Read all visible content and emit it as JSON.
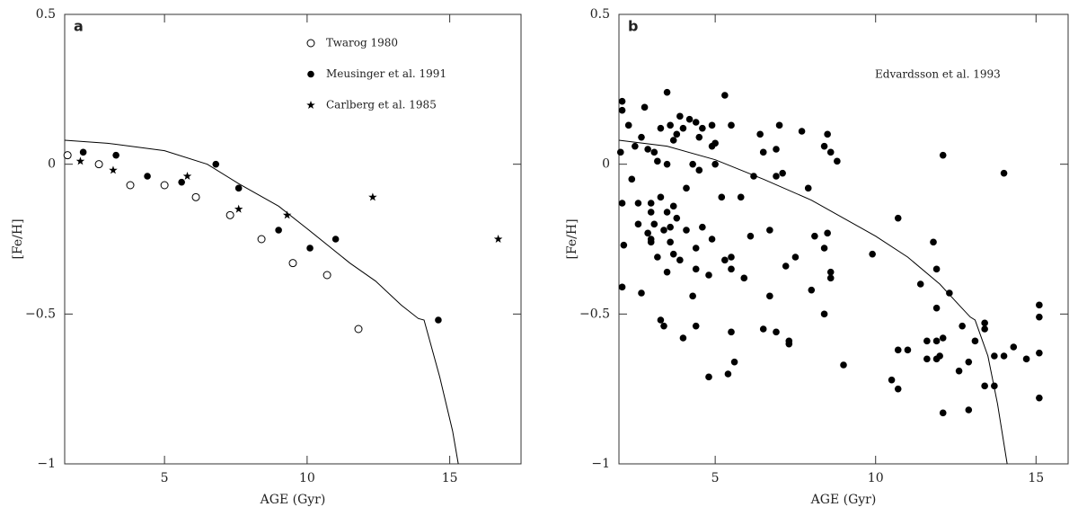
{
  "chart_data": [
    {
      "type": "scatter",
      "panel_label": "a",
      "xlabel": "AGE (Gyr)",
      "ylabel": "[Fe/H]",
      "xlim": [
        1.5,
        17.5
      ],
      "ylim": [
        -1,
        0.5
      ],
      "xticks": [
        5,
        10,
        15
      ],
      "yticks": [
        0.5,
        0,
        {
          "value": -0.5,
          "label": "−0.5"
        },
        {
          "value": -1,
          "label": "−1"
        }
      ],
      "legend": "top-right",
      "series": [
        {
          "name": "Twarog 1980",
          "marker": "open-circle",
          "color": "#000000",
          "x": [
            1.6,
            2.7,
            3.8,
            5,
            6.1,
            7.3,
            8.4,
            9.5,
            10.7,
            11.8
          ],
          "values": [
            0.03,
            0,
            -0.07,
            -0.07,
            -0.11,
            -0.17,
            -0.25,
            -0.33,
            -0.37,
            -0.55
          ]
        },
        {
          "name": "Meusinger et al. 1991",
          "marker": "filled-circle",
          "color": "#000000",
          "x": [
            2.15,
            3.3,
            4.4,
            5.6,
            6.8,
            7.6,
            9.0,
            10.1,
            11.0,
            14.6
          ],
          "values": [
            0.04,
            0.03,
            -0.04,
            -0.06,
            0,
            -0.08,
            -0.22,
            -0.28,
            -0.25,
            -0.52
          ]
        },
        {
          "name": "Carlberg et al. 1985",
          "marker": "star",
          "color": "#000000",
          "x": [
            2.05,
            3.2,
            5.8,
            7.6,
            9.3,
            12.3,
            16.7
          ],
          "values": [
            0.01,
            -0.02,
            -0.04,
            -0.15,
            -0.17,
            -0.11,
            -0.25
          ]
        },
        {
          "marker": "line",
          "color": "#000000",
          "x": [
            1.5,
            3,
            5,
            6.5,
            7.6,
            9,
            10,
            11.5,
            12.4,
            13.3,
            13.9,
            14.1,
            14.65,
            15.1,
            15.3
          ],
          "values": [
            0.08,
            0.07,
            0.045,
            0,
            -0.065,
            -0.14,
            -0.215,
            -0.33,
            -0.39,
            -0.47,
            -0.515,
            -0.52,
            -0.71,
            -0.89,
            -1
          ]
        }
      ]
    },
    {
      "type": "scatter",
      "panel_label": "b",
      "xlabel": "AGE (Gyr)",
      "ylabel": "[Fe/H]",
      "xlim": [
        2,
        16
      ],
      "ylim": [
        -1,
        0.5
      ],
      "xticks": [
        5,
        10,
        15
      ],
      "yticks": [
        0.5,
        0,
        {
          "value": -0.5,
          "label": "−0.5"
        },
        {
          "value": -1,
          "label": "−1"
        }
      ],
      "annotation": "Edvardsson et al. 1993",
      "series": [
        {
          "marker": "filled-circle",
          "color": "#000000",
          "x": [
            2.05,
            2.1,
            2.1,
            2.1,
            2.15,
            2.1,
            2.3,
            2.4,
            2.5,
            2.6,
            2.6,
            2.7,
            2.7,
            2.8,
            2.9,
            2.9,
            3.0,
            3.0,
            3.0,
            3.0,
            3.1,
            3.1,
            3.2,
            3.2,
            3.3,
            3.3,
            3.3,
            3.4,
            3.4,
            3.5,
            3.5,
            3.5,
            3.5,
            3.6,
            3.6,
            3.6,
            3.7,
            3.7,
            3.7,
            3.8,
            3.8,
            3.9,
            3.9,
            4.0,
            4.0,
            4.1,
            4.1,
            4.2,
            4.3,
            4.3,
            4.4,
            4.4,
            4.4,
            4.4,
            4.5,
            4.5,
            4.6,
            4.6,
            4.8,
            4.8,
            4.9,
            4.9,
            4.9,
            5.0,
            5.0,
            5.2,
            5.3,
            5.3,
            5.4,
            5.5,
            5.5,
            5.5,
            5.5,
            5.6,
            5.8,
            5.9,
            6.1,
            6.2,
            6.4,
            6.5,
            6.5,
            6.7,
            6.7,
            6.9,
            6.9,
            6.9,
            7.0,
            7.1,
            7.2,
            7.3,
            7.3,
            7.5,
            7.7,
            7.9,
            8.0,
            8.1,
            8.4,
            8.4,
            8.4,
            8.5,
            8.5,
            8.6,
            8.6,
            8.6,
            8.8,
            9.0,
            9.9,
            10.5,
            10.7,
            10.7,
            10.7,
            11.0,
            11.4,
            11.6,
            11.6,
            11.8,
            11.9,
            11.9,
            11.9,
            11.9,
            12.0,
            12.1,
            12.1,
            12.1,
            12.3,
            12.6,
            12.7,
            12.9,
            12.9,
            13.1,
            13.4,
            13.4,
            13.4,
            13.7,
            13.7,
            14.0,
            14.0,
            14.3,
            14.7,
            15.1,
            15.1,
            15.1,
            15.1
          ],
          "values": [
            0.04,
            0.21,
            0.18,
            -0.13,
            -0.27,
            -0.41,
            0.13,
            -0.05,
            0.06,
            -0.2,
            -0.13,
            -0.43,
            0.09,
            0.19,
            0.05,
            -0.23,
            -0.13,
            -0.16,
            -0.26,
            -0.25,
            -0.2,
            0.04,
            0.01,
            -0.31,
            -0.52,
            0.12,
            -0.11,
            -0.54,
            -0.22,
            0.24,
            0,
            -0.16,
            -0.36,
            0.13,
            -0.26,
            -0.21,
            0.08,
            -0.14,
            -0.3,
            0.1,
            -0.18,
            0.16,
            -0.32,
            -0.58,
            0.12,
            -0.08,
            -0.22,
            0.15,
            0,
            -0.44,
            -0.28,
            -0.35,
            0.14,
            -0.54,
            0.09,
            -0.02,
            -0.21,
            0.12,
            -0.37,
            -0.71,
            0.06,
            -0.25,
            0.13,
            0.07,
            0,
            -0.11,
            0.23,
            -0.32,
            -0.7,
            -0.35,
            -0.31,
            -0.56,
            0.13,
            -0.66,
            -0.11,
            -0.38,
            -0.24,
            -0.04,
            0.1,
            -0.55,
            0.04,
            -0.22,
            -0.44,
            -0.04,
            0.05,
            -0.56,
            0.13,
            -0.03,
            -0.34,
            -0.59,
            -0.6,
            -0.31,
            0.11,
            -0.08,
            -0.42,
            -0.24,
            -0.28,
            -0.5,
            0.06,
            0.1,
            -0.23,
            0.04,
            -0.36,
            -0.38,
            0.01,
            -0.67,
            -0.3,
            -0.72,
            -0.18,
            -0.62,
            -0.75,
            -0.62,
            -0.4,
            -0.59,
            -0.65,
            -0.26,
            -0.35,
            -0.48,
            -0.59,
            -0.65,
            -0.64,
            0.03,
            -0.58,
            -0.83,
            -0.43,
            -0.69,
            -0.54,
            -0.66,
            -0.82,
            -0.59,
            -0.53,
            -0.55,
            -0.74,
            -0.64,
            -0.74,
            -0.64,
            -0.03,
            -0.61,
            -0.65,
            -0.47,
            -0.51,
            -0.63,
            -0.78
          ]
        },
        {
          "marker": "line",
          "color": "#000000",
          "x": [
            2,
            3.5,
            5,
            6.5,
            8,
            9,
            10,
            11,
            12,
            12.6,
            12.95,
            13.1,
            13.5,
            13.8,
            14.1
          ],
          "values": [
            0.08,
            0.06,
            0.015,
            -0.05,
            -0.12,
            -0.18,
            -0.24,
            -0.31,
            -0.4,
            -0.47,
            -0.51,
            -0.52,
            -0.64,
            -0.8,
            -1
          ]
        }
      ]
    }
  ]
}
